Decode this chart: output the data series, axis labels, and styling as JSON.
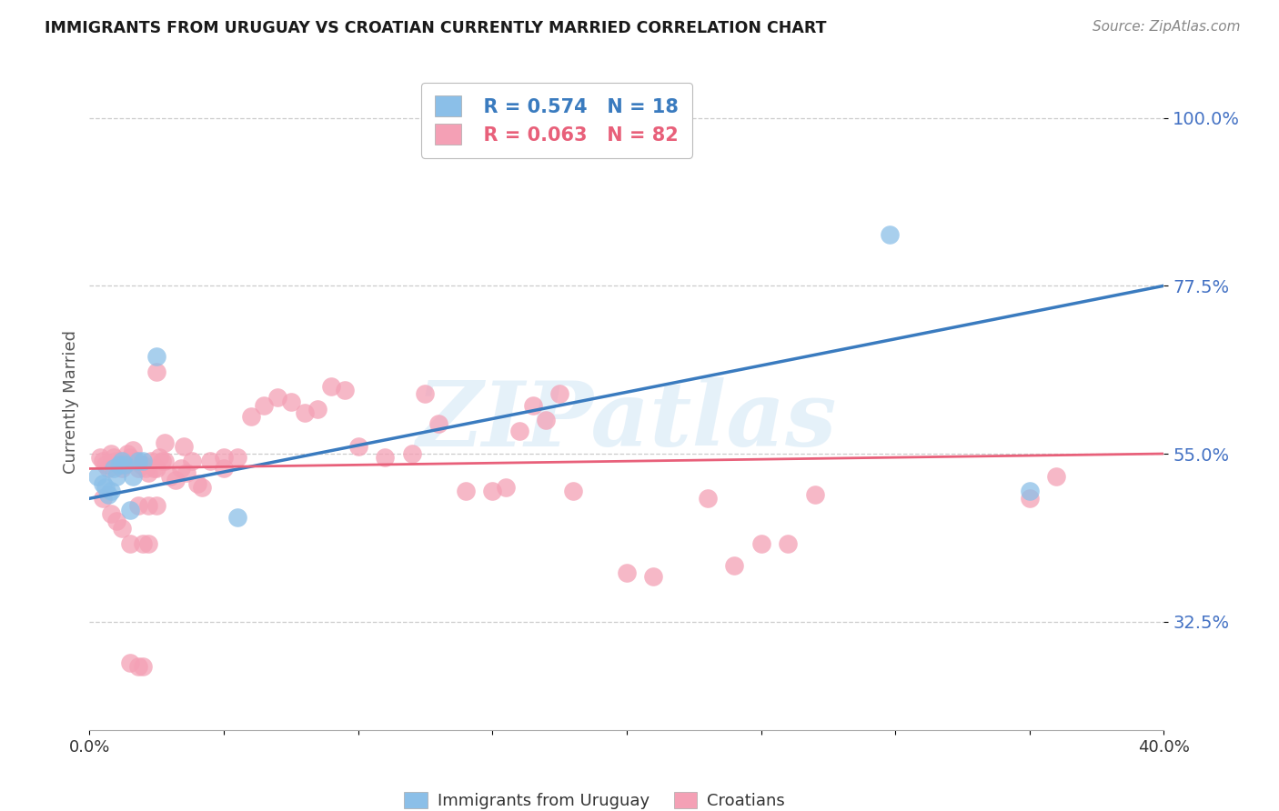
{
  "title": "IMMIGRANTS FROM URUGUAY VS CROATIAN CURRENTLY MARRIED CORRELATION CHART",
  "source": "Source: ZipAtlas.com",
  "ylabel": "Currently Married",
  "ytick_vals": [
    0.325,
    0.55,
    0.775,
    1.0
  ],
  "ytick_labels": [
    "32.5%",
    "55.0%",
    "77.5%",
    "100.0%"
  ],
  "xmin": 0.0,
  "xmax": 0.4,
  "ymin": 0.18,
  "ymax": 1.06,
  "watermark": "ZIPatlas",
  "legend_blue_r": "R = 0.574",
  "legend_blue_n": "N = 18",
  "legend_pink_r": "R = 0.063",
  "legend_pink_n": "N = 82",
  "label_blue": "Immigrants from Uruguay",
  "label_pink": "Croatians",
  "blue_color": "#8bbfe8",
  "pink_color": "#f4a0b5",
  "blue_line_color": "#3a7bbf",
  "pink_line_color": "#e8607a",
  "ytick_color": "#4472c4",
  "title_color": "#1a1a1a",
  "source_color": "#888888",
  "blue_line_y0": 0.49,
  "blue_line_y1": 0.775,
  "pink_line_y0": 0.53,
  "pink_line_y1": 0.55,
  "blue_x": [
    0.003,
    0.005,
    0.006,
    0.007,
    0.008,
    0.009,
    0.01,
    0.011,
    0.012,
    0.013,
    0.015,
    0.016,
    0.018,
    0.02,
    0.025,
    0.055,
    0.298,
    0.35
  ],
  "blue_y": [
    0.52,
    0.51,
    0.505,
    0.495,
    0.5,
    0.53,
    0.52,
    0.535,
    0.54,
    0.535,
    0.475,
    0.52,
    0.54,
    0.54,
    0.68,
    0.465,
    0.843,
    0.5
  ],
  "pink_x": [
    0.004,
    0.005,
    0.006,
    0.007,
    0.008,
    0.009,
    0.01,
    0.011,
    0.012,
    0.013,
    0.014,
    0.015,
    0.016,
    0.017,
    0.018,
    0.019,
    0.02,
    0.021,
    0.022,
    0.023,
    0.024,
    0.025,
    0.026,
    0.027,
    0.028,
    0.03,
    0.032,
    0.034,
    0.036,
    0.038,
    0.04,
    0.042,
    0.045,
    0.05,
    0.055,
    0.06,
    0.065,
    0.07,
    0.075,
    0.08,
    0.085,
    0.09,
    0.095,
    0.1,
    0.11,
    0.12,
    0.125,
    0.13,
    0.14,
    0.15,
    0.155,
    0.16,
    0.165,
    0.17,
    0.175,
    0.18,
    0.2,
    0.21,
    0.23,
    0.24,
    0.25,
    0.26,
    0.27,
    0.005,
    0.008,
    0.01,
    0.012,
    0.015,
    0.018,
    0.02,
    0.022,
    0.025,
    0.015,
    0.018,
    0.02,
    0.022,
    0.025,
    0.028,
    0.035,
    0.05,
    0.35,
    0.36
  ],
  "pink_y": [
    0.545,
    0.54,
    0.535,
    0.53,
    0.55,
    0.545,
    0.54,
    0.535,
    0.53,
    0.535,
    0.55,
    0.545,
    0.555,
    0.54,
    0.53,
    0.535,
    0.535,
    0.53,
    0.525,
    0.54,
    0.53,
    0.53,
    0.545,
    0.54,
    0.54,
    0.52,
    0.515,
    0.53,
    0.525,
    0.54,
    0.51,
    0.505,
    0.54,
    0.53,
    0.545,
    0.6,
    0.615,
    0.625,
    0.62,
    0.605,
    0.61,
    0.64,
    0.635,
    0.56,
    0.545,
    0.55,
    0.63,
    0.59,
    0.5,
    0.5,
    0.505,
    0.58,
    0.615,
    0.595,
    0.63,
    0.5,
    0.39,
    0.385,
    0.49,
    0.4,
    0.43,
    0.43,
    0.495,
    0.49,
    0.47,
    0.46,
    0.45,
    0.43,
    0.48,
    0.43,
    0.43,
    0.66,
    0.27,
    0.265,
    0.265,
    0.48,
    0.48,
    0.565,
    0.56,
    0.545,
    0.49,
    0.52
  ]
}
